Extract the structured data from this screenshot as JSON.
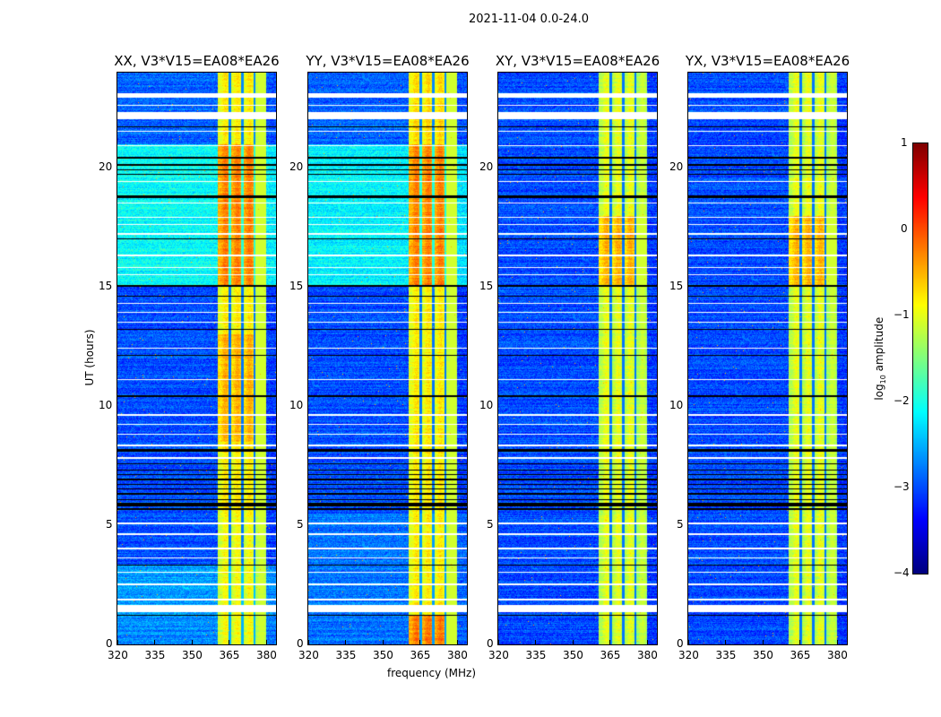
{
  "chart_data": {
    "type": "heatmap",
    "title": "2021-11-04 0.0-24.0",
    "xlabel": "frequency (MHz)",
    "ylabel": "UT (hours)",
    "xlim": [
      320,
      384
    ],
    "ylim": [
      0,
      24
    ],
    "xticks": [
      "320",
      "335",
      "350",
      "365",
      "380"
    ],
    "xtick_values": [
      320,
      335,
      350,
      365,
      380
    ],
    "yticks": [
      "0",
      "5",
      "10",
      "15",
      "20"
    ],
    "ytick_values": [
      0,
      5,
      10,
      15,
      20
    ],
    "colorbar": {
      "label_main": "log",
      "label_sub": "10",
      "label_rest": " amplitude",
      "colormap": "jet",
      "range": [
        -4,
        1
      ],
      "ticks": [
        "1",
        "0",
        "−1",
        "−2",
        "−3",
        "−4"
      ],
      "tick_values": [
        1,
        0,
        -1,
        -2,
        -3,
        -4
      ]
    },
    "band_mhz": [
      360.5,
      380
    ],
    "band_notches_mhz": [
      365.3,
      370.5,
      375.3
    ],
    "flagged_white_hours": [
      [
        23.0,
        23.12
      ],
      [
        22.95,
        22.98
      ],
      [
        22.6,
        22.65
      ],
      [
        22.05,
        22.35
      ],
      [
        21.5,
        21.55
      ],
      [
        20.9,
        20.95
      ],
      [
        19.4,
        19.45
      ],
      [
        18.5,
        18.55
      ],
      [
        17.9,
        17.95
      ],
      [
        17.6,
        17.65
      ],
      [
        17.2,
        17.25
      ],
      [
        16.3,
        16.35
      ],
      [
        15.8,
        15.85
      ],
      [
        15.5,
        15.55
      ],
      [
        14.3,
        14.35
      ],
      [
        13.9,
        13.95
      ],
      [
        13.5,
        13.55
      ],
      [
        12.4,
        12.45
      ],
      [
        11.1,
        11.15
      ],
      [
        9.6,
        9.65
      ],
      [
        9.2,
        9.25
      ],
      [
        8.8,
        8.85
      ],
      [
        8.3,
        8.4
      ],
      [
        7.8,
        7.85
      ],
      [
        5.05,
        5.1
      ],
      [
        4.6,
        4.65
      ],
      [
        4.0,
        4.05
      ],
      [
        3.6,
        3.65
      ],
      [
        3.0,
        3.05
      ],
      [
        2.5,
        2.55
      ],
      [
        1.35,
        1.65
      ],
      [
        1.85,
        1.9
      ]
    ],
    "flagged_black_hours": [
      [
        21.7,
        21.74
      ],
      [
        20.4,
        20.45
      ],
      [
        20.1,
        20.15
      ],
      [
        19.9,
        19.95
      ],
      [
        19.7,
        19.75
      ],
      [
        18.75,
        18.85
      ],
      [
        17.0,
        17.04
      ],
      [
        15.0,
        15.1
      ],
      [
        14.6,
        14.64
      ],
      [
        13.2,
        13.25
      ],
      [
        12.1,
        12.15
      ],
      [
        10.4,
        10.45
      ],
      [
        8.1,
        8.2
      ],
      [
        7.55,
        7.6
      ],
      [
        7.3,
        7.35
      ],
      [
        7.1,
        7.15
      ],
      [
        6.9,
        6.95
      ],
      [
        6.7,
        6.75
      ],
      [
        6.5,
        6.55
      ],
      [
        6.3,
        6.35
      ],
      [
        6.05,
        6.1
      ],
      [
        5.8,
        5.95
      ],
      [
        5.65,
        5.72
      ],
      [
        3.3,
        3.35
      ],
      [
        1.2,
        1.25
      ]
    ],
    "series": [
      {
        "name": "XX, V3*V15=EA08*EA26",
        "background_segments": [
          {
            "t": [
              0,
              1.2
            ],
            "level": -2.7
          },
          {
            "t": [
              1.2,
              3.3
            ],
            "level": -2.6
          },
          {
            "t": [
              3.3,
              15
            ],
            "level": -3.0
          },
          {
            "t": [
              15,
              21
            ],
            "level": -2.1
          },
          {
            "t": [
              21,
              24
            ],
            "level": -2.9
          }
        ],
        "band_segments": [
          {
            "t": [
              0,
              5.5
            ],
            "level": -1.0
          },
          {
            "t": [
              5.5,
              8.5
            ],
            "level": -0.9
          },
          {
            "t": [
              8.5,
              13
            ],
            "level": -0.6
          },
          {
            "t": [
              13,
              15
            ],
            "level": -0.9
          },
          {
            "t": [
              15,
              21
            ],
            "level": -0.35
          },
          {
            "t": [
              21,
              24
            ],
            "level": -0.9
          }
        ]
      },
      {
        "name": "YY, V3*V15=EA08*EA26",
        "background_segments": [
          {
            "t": [
              0,
              5.5
            ],
            "level": -2.8
          },
          {
            "t": [
              5.5,
              15
            ],
            "level": -3.0
          },
          {
            "t": [
              15,
              21
            ],
            "level": -2.15
          },
          {
            "t": [
              21,
              24
            ],
            "level": -2.9
          }
        ],
        "band_segments": [
          {
            "t": [
              0,
              1.2
            ],
            "level": -0.3
          },
          {
            "t": [
              1.2,
              8
            ],
            "level": -0.9
          },
          {
            "t": [
              8,
              15
            ],
            "level": -0.9
          },
          {
            "t": [
              15,
              21
            ],
            "level": -0.35
          },
          {
            "t": [
              21,
              24
            ],
            "level": -0.8
          }
        ]
      },
      {
        "name": "XY, V3*V15=EA08*EA26",
        "background_segments": [
          {
            "t": [
              0,
              24
            ],
            "level": -3.0
          }
        ],
        "band_segments": [
          {
            "t": [
              0,
              15
            ],
            "level": -1.1
          },
          {
            "t": [
              15,
              18
            ],
            "level": -0.6
          },
          {
            "t": [
              18,
              24
            ],
            "level": -1.1
          }
        ]
      },
      {
        "name": "YX, V3*V15=EA08*EA26",
        "background_segments": [
          {
            "t": [
              0,
              24
            ],
            "level": -3.0
          }
        ],
        "band_segments": [
          {
            "t": [
              0,
              15
            ],
            "level": -1.1
          },
          {
            "t": [
              15,
              18
            ],
            "level": -0.6
          },
          {
            "t": [
              18,
              24
            ],
            "level": -1.1
          }
        ]
      }
    ]
  }
}
